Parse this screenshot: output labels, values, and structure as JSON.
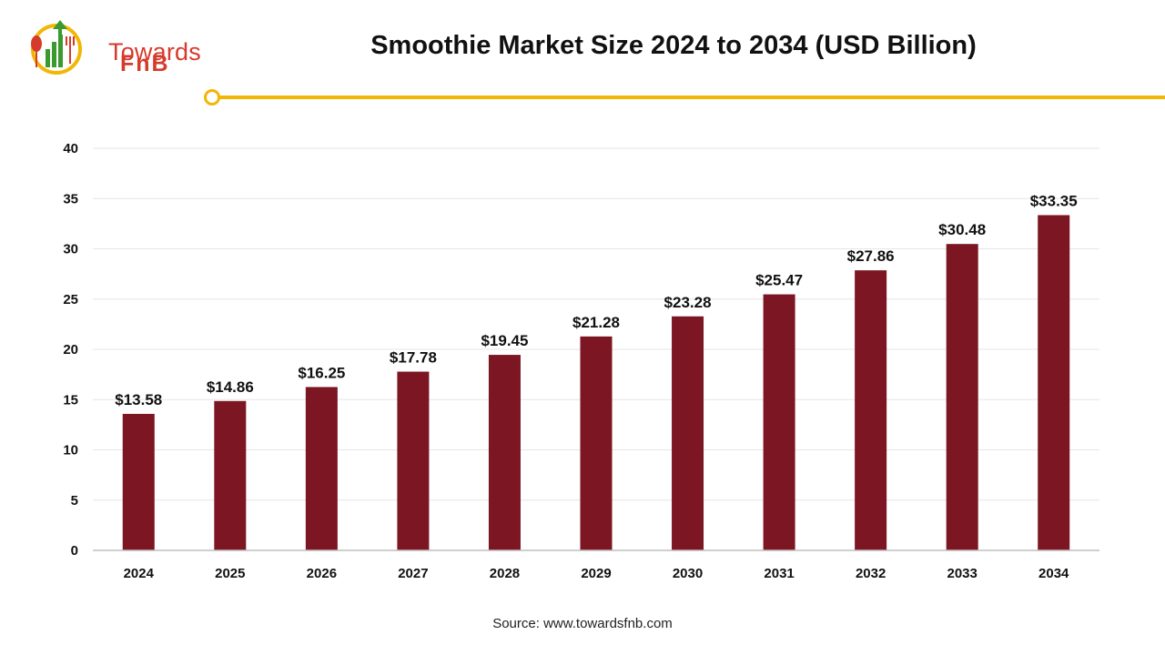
{
  "header": {
    "logo_word_1": "Towards",
    "logo_word_2": "FnB"
  },
  "footer": {
    "source": "Source: www.towardsfnb.com"
  },
  "colors": {
    "bar": "#7b1622",
    "accent": "#f2b705",
    "logo_red": "#d63a2b",
    "logo_green": "#3a9a2e"
  },
  "chart_data": {
    "type": "bar",
    "title": "Smoothie Market Size 2024 to 2034 (USD Billion)",
    "xlabel": "",
    "ylabel": "",
    "categories": [
      "2024",
      "2025",
      "2026",
      "2027",
      "2028",
      "2029",
      "2030",
      "2031",
      "2032",
      "2033",
      "2034"
    ],
    "values": [
      13.58,
      14.86,
      16.25,
      17.78,
      19.45,
      21.28,
      23.28,
      25.47,
      27.86,
      30.48,
      33.35
    ],
    "value_labels": [
      "$13.58",
      "$14.86",
      "$16.25",
      "$17.78",
      "$19.45",
      "$21.28",
      "$23.28",
      "$25.47",
      "$27.86",
      "$30.48",
      "$33.35"
    ],
    "ylim": [
      0,
      40
    ],
    "yticks": [
      0,
      5,
      10,
      15,
      20,
      25,
      30,
      35,
      40
    ],
    "grid": true,
    "legend": "none"
  }
}
